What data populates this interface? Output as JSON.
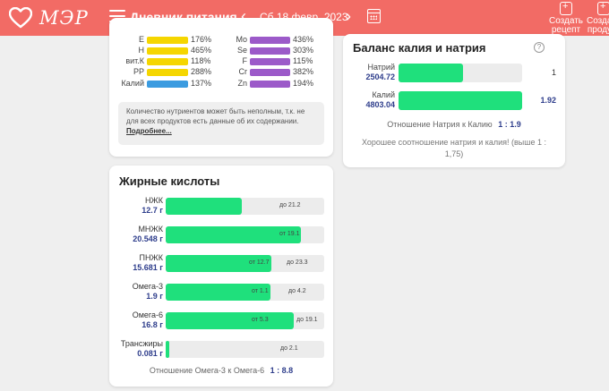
{
  "header": {
    "logo_text": "МЭР",
    "title": "Дневник питания",
    "prev": "‹",
    "next": "›",
    "date": "Сб 18 февр. 2023",
    "btn_recipe": "Создать рецепт",
    "btn_product": "Создать продукт"
  },
  "micro": {
    "left": [
      {
        "label": "E",
        "percent_text": "176%",
        "fill": 1.0,
        "color": "#f5d600"
      },
      {
        "label": "H",
        "percent_text": "465%",
        "fill": 1.0,
        "color": "#f5d600"
      },
      {
        "label": "вит.К",
        "percent_text": "118%",
        "fill": 1.0,
        "color": "#f5d600"
      },
      {
        "label": "PP",
        "percent_text": "288%",
        "fill": 1.0,
        "color": "#f5d600"
      },
      {
        "label": "Калий",
        "percent_text": "137%",
        "fill": 1.0,
        "color": "#3b9be0"
      }
    ],
    "right": [
      {
        "label": "Mo",
        "percent_text": "436%",
        "fill": 1.0,
        "color": "#9c5ac9"
      },
      {
        "label": "Se",
        "percent_text": "303%",
        "fill": 1.0,
        "color": "#9c5ac9"
      },
      {
        "label": "F",
        "percent_text": "115%",
        "fill": 1.0,
        "color": "#9c5ac9"
      },
      {
        "label": "Cr",
        "percent_text": "382%",
        "fill": 1.0,
        "color": "#9c5ac9"
      },
      {
        "label": "Zn",
        "percent_text": "194%",
        "fill": 1.0,
        "color": "#9c5ac9"
      }
    ],
    "note_text": "Количество нутриентов может быть неполным, т.к. не для всех продуктов есть данные об их содержании.",
    "note_link": "Подробнее..."
  },
  "fatty": {
    "title": "Жирные кислоты",
    "rows": [
      {
        "name": "НЖК",
        "value": "12.7 г",
        "fill": 0.48,
        "max": "до 21.2"
      },
      {
        "name": "МНЖК",
        "value": "20.548 г",
        "fill": 0.86,
        "min": "от 19.1"
      },
      {
        "name": "ПНЖК",
        "value": "15.681 г",
        "fill": 0.66,
        "min": "от 12.7",
        "max": "до 23.3"
      },
      {
        "name": "Омега-3",
        "value": "1.9 г",
        "fill": 0.66,
        "min": "от 1.1",
        "max": "до 4.2"
      },
      {
        "name": "Омега-6",
        "value": "16.8 г",
        "fill": 0.8,
        "min": "от 5.3",
        "max": "до 19.1"
      },
      {
        "name": "Трансжиры",
        "value": "0.081 г",
        "fill": 0.02,
        "max": "до 2.1"
      }
    ],
    "ratio_label": "Отношение Омега-3 к Омега-6",
    "ratio_value": "1 : 8.8"
  },
  "kna": {
    "title": "Баланс калия и натрия",
    "help": "?",
    "rows": [
      {
        "name": "Натрий",
        "value": "2504.72",
        "ratio": "1",
        "fill": 0.52
      },
      {
        "name": "Калий",
        "value": "4803.04",
        "ratio": "1.92",
        "fill": 1.0
      }
    ],
    "ratio_label": "Отношение Натрия к Калию",
    "ratio_value": "1 : 1.9",
    "verdict": "Хорошее соотношение натрия и калия! (выше 1 : 1,75)"
  }
}
